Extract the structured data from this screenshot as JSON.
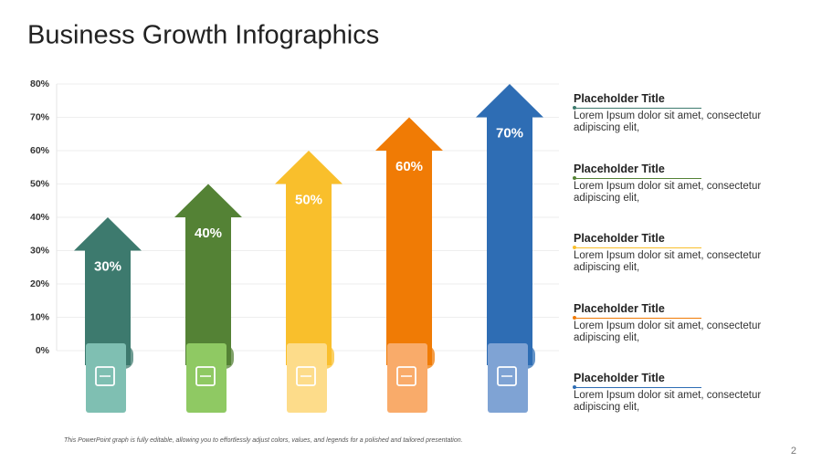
{
  "chart_data": {
    "type": "arrow-bar",
    "title": "Business Growth Infographics",
    "values": [
      30,
      40,
      50,
      60,
      70
    ],
    "value_labels": [
      "30%",
      "40%",
      "50%",
      "60%",
      "70%"
    ],
    "colors": [
      "#3d7a6e",
      "#548235",
      "#f9bf2c",
      "#f07b05",
      "#2e6db4"
    ],
    "ylim": [
      0,
      80
    ],
    "yticks": [
      {
        "value": 0,
        "label": "0%"
      },
      {
        "value": 10,
        "label": "10%"
      },
      {
        "value": 20,
        "label": "20%"
      },
      {
        "value": 30,
        "label": "30%"
      },
      {
        "value": 40,
        "label": "40%"
      },
      {
        "value": 50,
        "label": "50%"
      },
      {
        "value": 60,
        "label": "60%"
      },
      {
        "value": 70,
        "label": "70%"
      },
      {
        "value": 80,
        "label": "80%"
      }
    ],
    "grid": true,
    "note": "This PowerPoint graph is fully editable, allowing you to effortlessly adjust colors, values, and legends for a polished and tailored presentation."
  },
  "panel": [
    {
      "title": "Placeholder Title",
      "text": "Lorem Ipsum dolor sit amet, consectetur adipiscing elit,"
    },
    {
      "title": "Placeholder Title",
      "text": "Lorem Ipsum dolor sit amet, consectetur adipiscing elit,"
    },
    {
      "title": "Placeholder Title",
      "text": "Lorem Ipsum dolor sit amet, consectetur adipiscing elit,"
    },
    {
      "title": "Placeholder Title",
      "text": "Lorem Ipsum dolor sit amet, consectetur adipiscing elit,"
    },
    {
      "title": "Placeholder Title",
      "text": "Lorem Ipsum dolor sit amet, consectetur adipiscing elit,"
    }
  ],
  "page_number": "2"
}
